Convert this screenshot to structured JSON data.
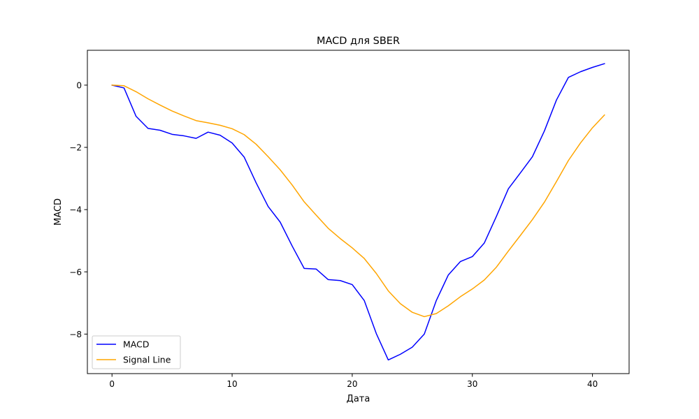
{
  "chart_data": {
    "type": "line",
    "title": "MACD для SBER",
    "xlabel": "Дата",
    "ylabel": "MACD",
    "xlim": [
      -2.05,
      43.05
    ],
    "ylim": [
      -9.27,
      1.12
    ],
    "xticks": [
      0,
      10,
      20,
      30,
      40
    ],
    "yticks": [
      -8,
      -6,
      -4,
      -2,
      0
    ],
    "xtick_labels": [
      "0",
      "10",
      "20",
      "30",
      "40"
    ],
    "ytick_labels": [
      "−8",
      "−6",
      "−4",
      "−2",
      "0"
    ],
    "grid": false,
    "legend_position": "lower-left",
    "x": [
      0,
      1,
      2,
      3,
      4,
      5,
      6,
      7,
      8,
      9,
      10,
      11,
      12,
      13,
      14,
      15,
      16,
      17,
      18,
      19,
      20,
      21,
      22,
      23,
      24,
      25,
      26,
      27,
      28,
      29,
      30,
      31,
      32,
      33,
      34,
      35,
      36,
      37,
      38,
      39,
      40,
      41
    ],
    "series": [
      {
        "name": "MACD",
        "color": "#0000ff",
        "values": [
          0.0,
          -0.09,
          -1.0,
          -1.39,
          -1.45,
          -1.58,
          -1.63,
          -1.71,
          -1.51,
          -1.61,
          -1.86,
          -2.31,
          -3.14,
          -3.9,
          -4.4,
          -5.17,
          -5.89,
          -5.91,
          -6.25,
          -6.28,
          -6.41,
          -6.92,
          -7.98,
          -8.83,
          -8.65,
          -8.42,
          -8.0,
          -6.92,
          -6.1,
          -5.67,
          -5.51,
          -5.07,
          -4.22,
          -3.33,
          -2.82,
          -2.3,
          -1.47,
          -0.48,
          0.25,
          0.43,
          0.57,
          0.69
        ]
      },
      {
        "name": "Signal Line",
        "color": "#ffa500",
        "values": [
          0.0,
          -0.02,
          -0.21,
          -0.44,
          -0.64,
          -0.83,
          -0.99,
          -1.14,
          -1.21,
          -1.29,
          -1.4,
          -1.59,
          -1.9,
          -2.3,
          -2.72,
          -3.21,
          -3.75,
          -4.18,
          -4.6,
          -4.93,
          -5.23,
          -5.57,
          -6.05,
          -6.61,
          -7.02,
          -7.3,
          -7.44,
          -7.34,
          -7.09,
          -6.8,
          -6.55,
          -6.26,
          -5.85,
          -5.33,
          -4.83,
          -4.32,
          -3.76,
          -3.1,
          -2.42,
          -1.86,
          -1.37,
          -0.96
        ]
      }
    ]
  }
}
